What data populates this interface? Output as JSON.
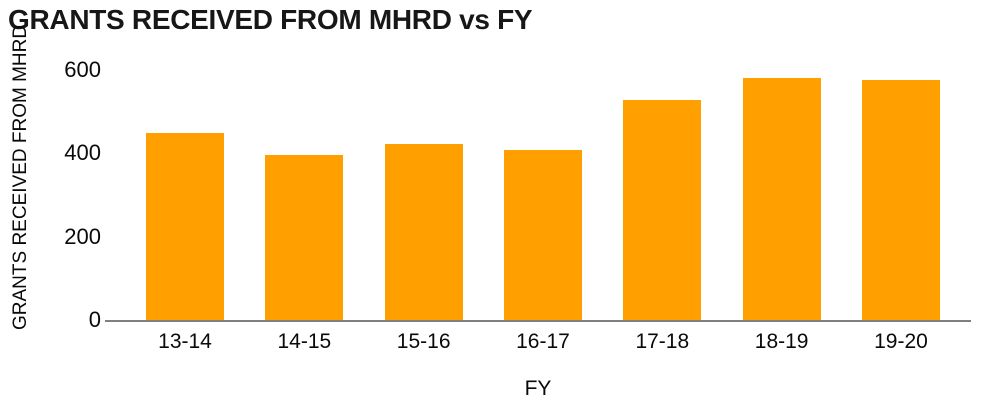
{
  "chart_data": {
    "type": "bar",
    "title": "GRANTS RECEIVED FROM MHRD vs FY",
    "xlabel": "FY",
    "ylabel": "GRANTS RECEIVED FROM MHRD",
    "categories": [
      "13-14",
      "14-15",
      "15-16",
      "16-17",
      "17-18",
      "18-19",
      "19-20"
    ],
    "values": [
      448,
      395,
      423,
      408,
      527,
      580,
      576
    ],
    "ylim": [
      0,
      600
    ],
    "yticks": [
      0,
      200,
      400,
      600
    ],
    "bar_color": "#FF9F00",
    "axis_color": "#7F7F7F",
    "grid": false,
    "legend_position": "none",
    "background_color": "#FFFFFF"
  }
}
